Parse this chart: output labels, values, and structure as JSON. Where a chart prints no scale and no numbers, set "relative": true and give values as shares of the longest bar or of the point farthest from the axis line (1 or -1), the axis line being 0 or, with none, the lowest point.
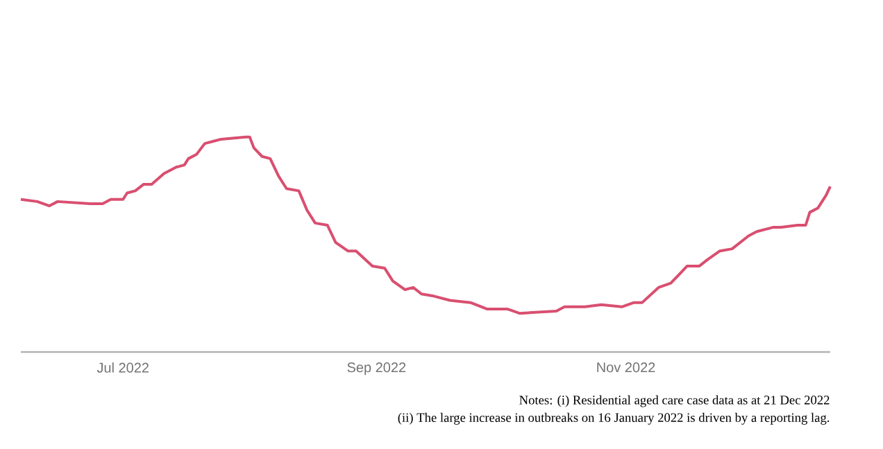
{
  "chart_data": {
    "type": "line",
    "relative": true,
    "x": [
      "2022-06-06",
      "2022-06-10",
      "2022-06-13",
      "2022-06-15",
      "2022-06-23",
      "2022-06-26",
      "2022-06-28",
      "2022-07-01",
      "2022-07-02",
      "2022-07-04",
      "2022-07-06",
      "2022-07-08",
      "2022-07-11",
      "2022-07-14",
      "2022-07-16",
      "2022-07-17",
      "2022-07-19",
      "2022-07-21",
      "2022-07-23",
      "2022-07-25",
      "2022-07-31",
      "2022-08-01",
      "2022-08-02",
      "2022-08-04",
      "2022-08-06",
      "2022-08-08",
      "2022-08-10",
      "2022-08-13",
      "2022-08-15",
      "2022-08-17",
      "2022-08-20",
      "2022-08-22",
      "2022-08-25",
      "2022-08-27",
      "2022-08-31",
      "2022-09-03",
      "2022-09-05",
      "2022-09-08",
      "2022-09-10",
      "2022-09-12",
      "2022-09-15",
      "2022-09-19",
      "2022-09-24",
      "2022-09-28",
      "2022-10-03",
      "2022-10-06",
      "2022-10-15",
      "2022-10-17",
      "2022-10-22",
      "2022-10-26",
      "2022-10-31",
      "2022-11-03",
      "2022-11-05",
      "2022-11-09",
      "2022-11-12",
      "2022-11-14",
      "2022-11-16",
      "2022-11-19",
      "2022-11-21",
      "2022-11-24",
      "2022-11-27",
      "2022-12-01",
      "2022-12-03",
      "2022-12-07",
      "2022-12-09",
      "2022-12-13",
      "2022-12-15",
      "2022-12-16",
      "2022-12-18",
      "2022-12-20",
      "2022-12-21"
    ],
    "series": [
      {
        "color": "#d94f70",
        "values": [
          0.71,
          0.7,
          0.68,
          0.7,
          0.69,
          0.69,
          0.71,
          0.71,
          0.74,
          0.75,
          0.78,
          0.78,
          0.83,
          0.86,
          0.87,
          0.9,
          0.92,
          0.97,
          0.98,
          0.99,
          1.0,
          1.0,
          0.95,
          0.91,
          0.9,
          0.82,
          0.76,
          0.75,
          0.66,
          0.6,
          0.59,
          0.51,
          0.47,
          0.47,
          0.4,
          0.39,
          0.33,
          0.29,
          0.3,
          0.27,
          0.26,
          0.24,
          0.23,
          0.2,
          0.2,
          0.18,
          0.19,
          0.21,
          0.21,
          0.22,
          0.21,
          0.23,
          0.23,
          0.3,
          0.32,
          0.36,
          0.4,
          0.4,
          0.43,
          0.47,
          0.48,
          0.54,
          0.56,
          0.58,
          0.58,
          0.59,
          0.59,
          0.65,
          0.67,
          0.73,
          0.77
        ]
      }
    ],
    "xlim": [
      "2022-06-06",
      "2022-12-21"
    ],
    "xticks": [
      {
        "value": "2022-07-01",
        "label": "Jul 2022"
      },
      {
        "value": "2022-09-01",
        "label": "Sep 2022"
      },
      {
        "value": "2022-11-01",
        "label": "Nov 2022"
      }
    ],
    "line_style": "solid",
    "marker": "none",
    "annotations": [
      "Notes: (i) Residential aged care case data as at 21 Dec 2022",
      "(ii) The large increase in outbreaks on 16 January 2022 is driven by a reporting lag."
    ]
  }
}
